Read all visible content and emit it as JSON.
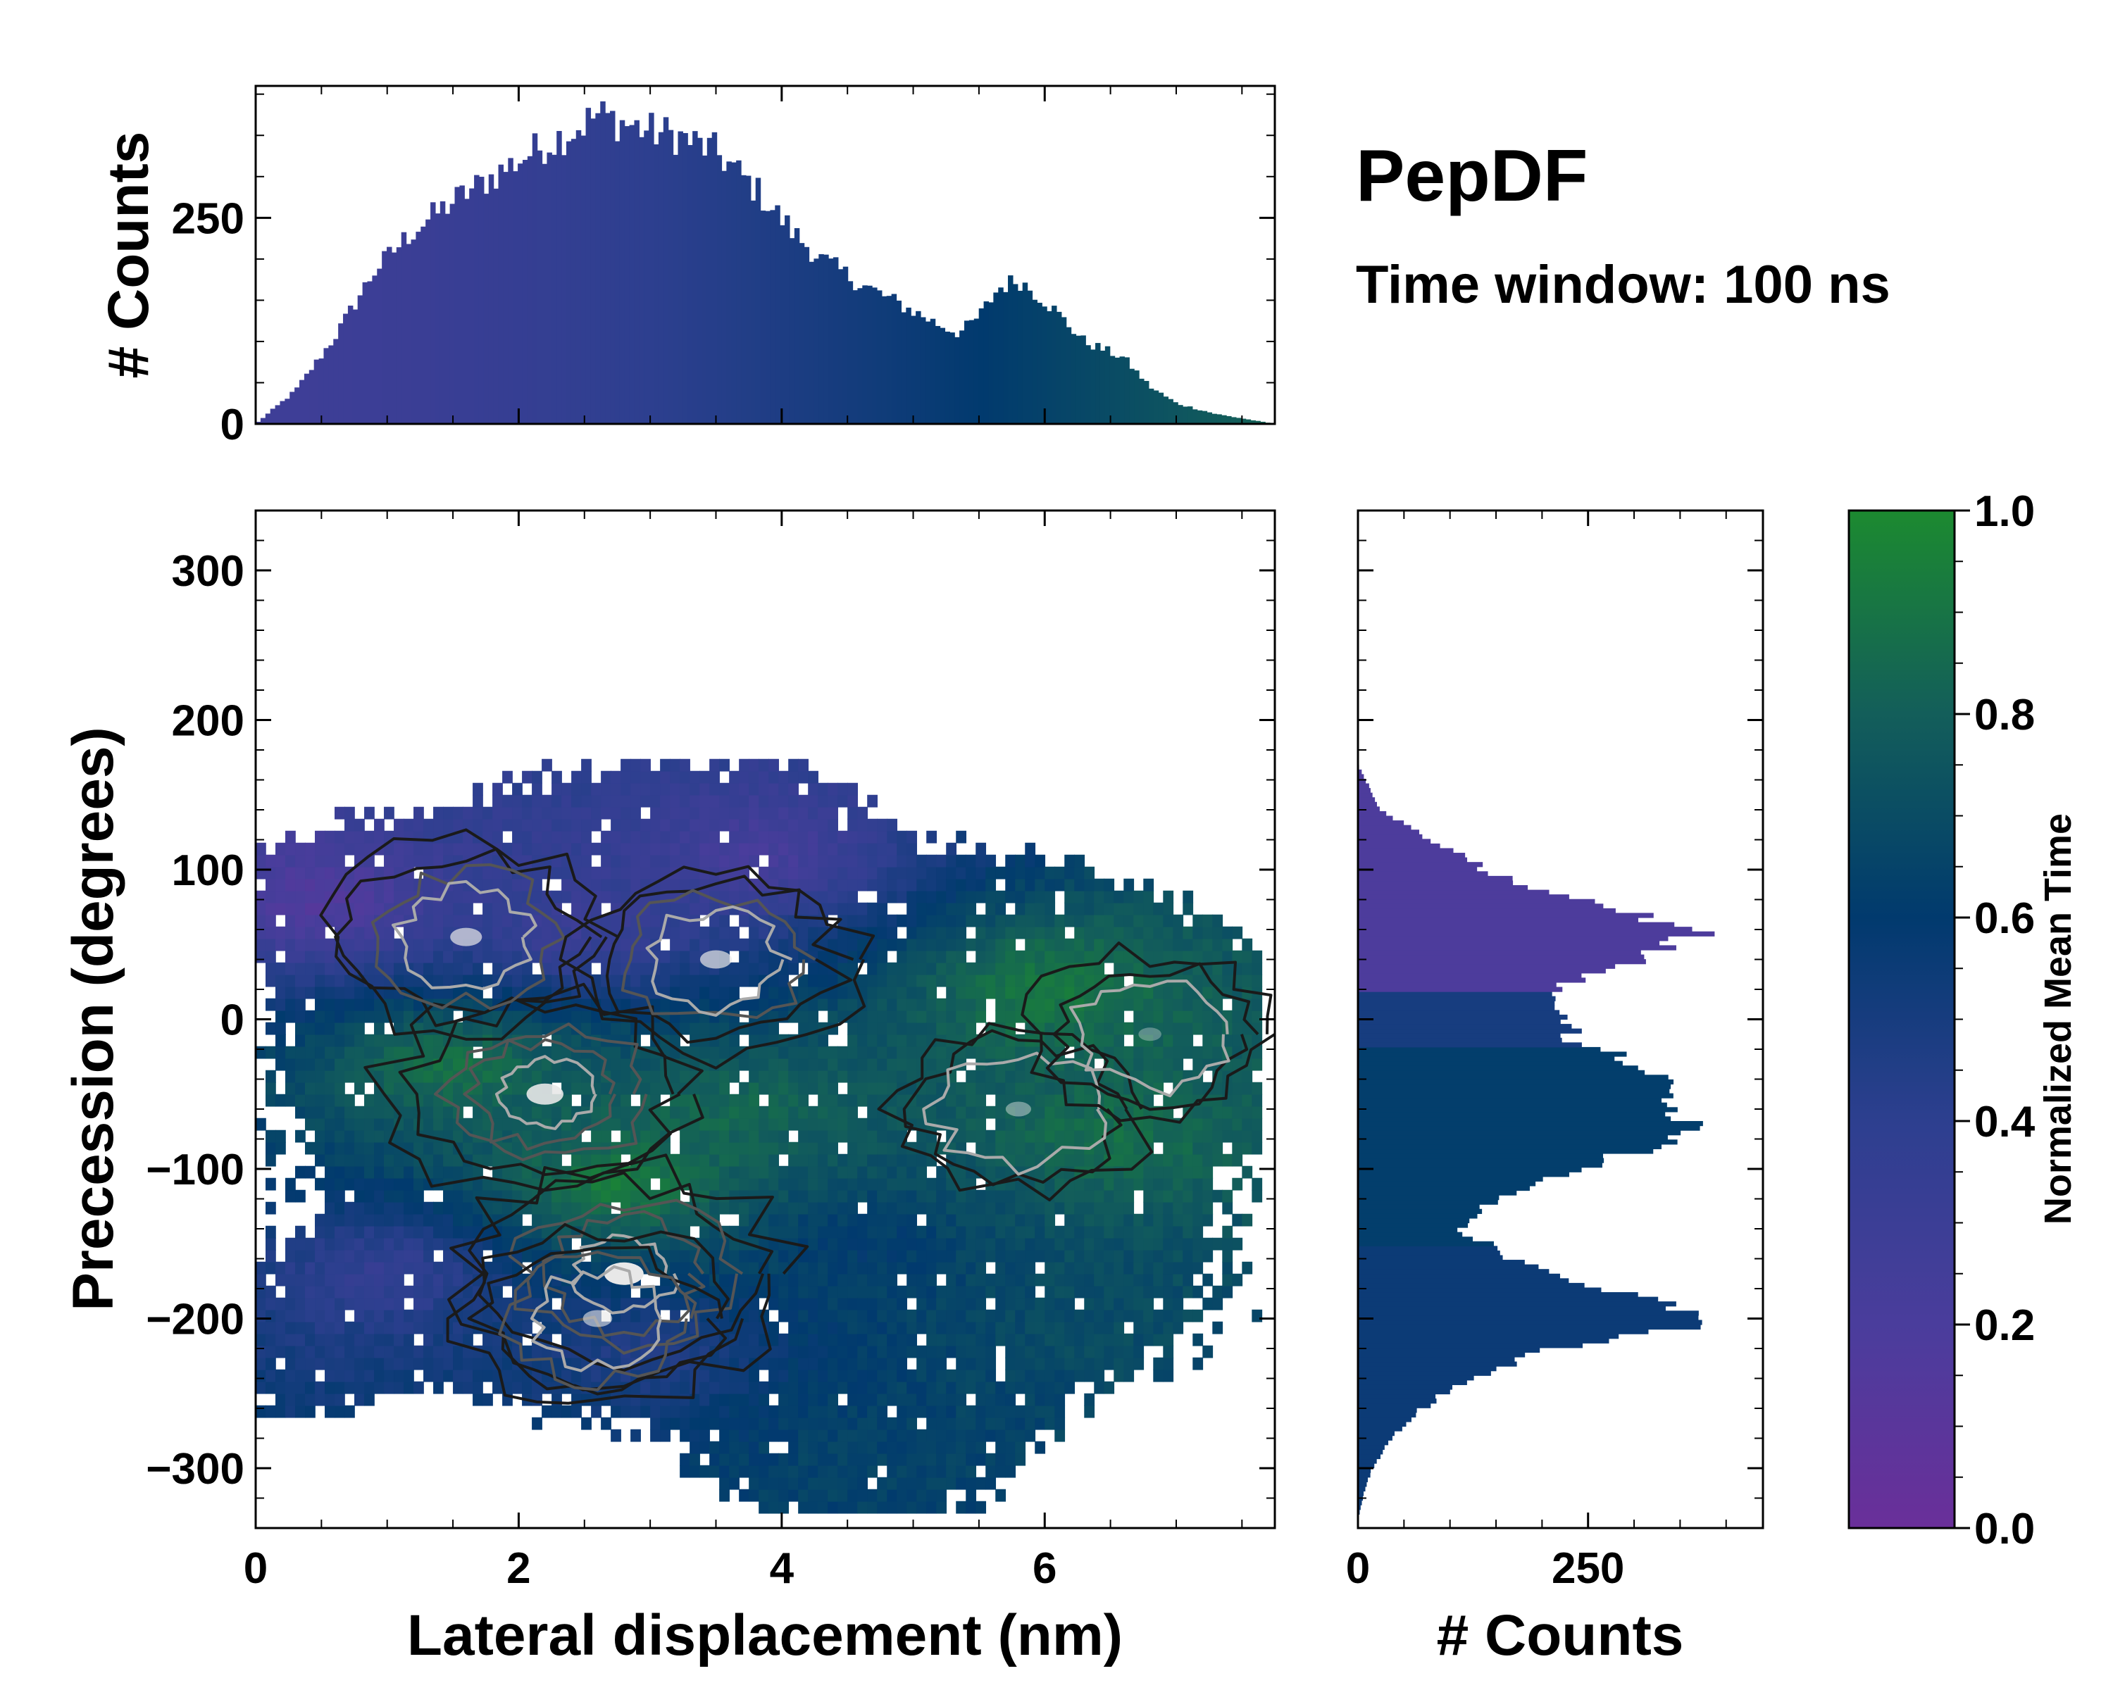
{
  "figure": {
    "title": "PepDF",
    "subtitle": "Time window: 100 ns"
  },
  "chart_data": [
    {
      "id": "top-histogram",
      "type": "bar",
      "ylabel": "# Counts",
      "xlim": [
        0,
        7.75
      ],
      "ylim": [
        0,
        410
      ],
      "yticks": [
        0,
        250
      ],
      "x_profile_nm": [
        0.0,
        0.3,
        0.6,
        0.9,
        1.2,
        1.5,
        1.8,
        2.1,
        2.4,
        2.6,
        2.8,
        3.0,
        3.2,
        3.5,
        3.8,
        4.1,
        4.3,
        4.6,
        4.9,
        5.2,
        5.35,
        5.5,
        5.65,
        5.8,
        6.0,
        6.3,
        6.6,
        6.8,
        7.0,
        7.3,
        7.6,
        7.75
      ],
      "counts_profile": [
        0,
        40,
        105,
        185,
        235,
        270,
        300,
        330,
        355,
        375,
        365,
        355,
        350,
        330,
        285,
        230,
        200,
        170,
        145,
        120,
        110,
        130,
        165,
        175,
        150,
        100,
        80,
        45,
        25,
        12,
        4,
        0
      ]
    },
    {
      "id": "main-heatmap",
      "type": "heatmap",
      "xlabel": "Lateral displacement (nm)",
      "ylabel": "Precession (degrees)",
      "xlim": [
        0,
        7.75
      ],
      "ylim": [
        -340,
        340
      ],
      "xticks": [
        0,
        2,
        4,
        6
      ],
      "yticks": [
        300,
        200,
        100,
        0,
        -100,
        -200,
        -300
      ],
      "ytick_labels": [
        "300",
        "200",
        "100",
        "0",
        "−100",
        "−200",
        "−300"
      ],
      "color_variable": "Normalized Mean Time",
      "density_peaks": [
        {
          "x": 2.8,
          "y": -170,
          "density": 1.0
        },
        {
          "x": 2.2,
          "y": -50,
          "density": 0.9
        },
        {
          "x": 1.6,
          "y": 55,
          "density": 0.7
        },
        {
          "x": 3.5,
          "y": 40,
          "density": 0.7
        },
        {
          "x": 2.6,
          "y": -200,
          "density": 0.6
        },
        {
          "x": 5.8,
          "y": -60,
          "density": 0.45
        },
        {
          "x": 6.8,
          "y": -10,
          "density": 0.35
        }
      ],
      "color_regions": [
        {
          "x": 0.5,
          "y": 80,
          "time": 0.15
        },
        {
          "x": 2.5,
          "y": 60,
          "time": 0.3
        },
        {
          "x": 3.8,
          "y": 110,
          "time": 0.22
        },
        {
          "x": 1.5,
          "y": -30,
          "time": 0.9
        },
        {
          "x": 2.8,
          "y": -110,
          "time": 0.95
        },
        {
          "x": 3.6,
          "y": -60,
          "time": 0.85
        },
        {
          "x": 6.0,
          "y": 20,
          "time": 0.92
        },
        {
          "x": 6.5,
          "y": -80,
          "time": 0.88
        },
        {
          "x": 1.0,
          "y": -170,
          "time": 0.35
        },
        {
          "x": 3.0,
          "y": -220,
          "time": 0.45
        },
        {
          "x": 4.5,
          "y": -290,
          "time": 0.65
        },
        {
          "x": 6.5,
          "y": -200,
          "time": 0.7
        },
        {
          "x": 4.6,
          "y": -150,
          "time": 0.6
        }
      ]
    },
    {
      "id": "side-histogram",
      "type": "bar",
      "orientation": "horizontal",
      "xlabel": "# Counts",
      "xlim": [
        0,
        440
      ],
      "ylim": [
        -340,
        340
      ],
      "xticks": [
        0,
        250
      ],
      "y_profile_deg": [
        170,
        140,
        120,
        100,
        85,
        70,
        60,
        45,
        30,
        15,
        0,
        -15,
        -30,
        -45,
        -60,
        -75,
        -90,
        -105,
        -120,
        -140,
        -160,
        -180,
        -195,
        -205,
        -220,
        -240,
        -260,
        -280,
        -300,
        -320,
        -335
      ],
      "counts_profile": [
        0,
        25,
        80,
        140,
        200,
        300,
        370,
        330,
        250,
        200,
        215,
        240,
        310,
        340,
        325,
        370,
        290,
        220,
        150,
        110,
        170,
        270,
        360,
        360,
        210,
        120,
        70,
        35,
        15,
        5,
        0
      ]
    },
    {
      "id": "colorbar",
      "type": "heatmap",
      "label": "Normalized Mean Time",
      "range": [
        0.0,
        1.0
      ],
      "ticks": [
        "0.0",
        "0.2",
        "0.4",
        "0.6",
        "0.8",
        "1.0"
      ],
      "colors": [
        "#6a2f9a",
        "#4a3d9c",
        "#2d3f8f",
        "#013a6e",
        "#135e5a",
        "#1c8a30"
      ]
    }
  ]
}
